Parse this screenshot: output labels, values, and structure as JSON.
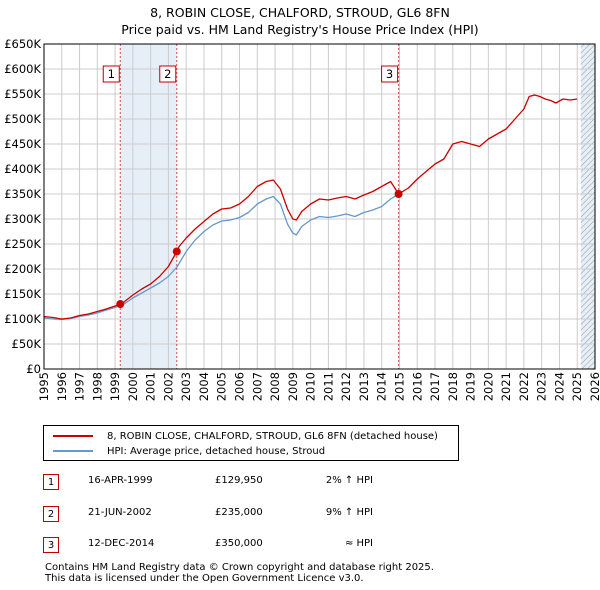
{
  "title_line1": "8, ROBIN CLOSE, CHALFORD, STROUD, GL6 8FN",
  "title_line2": "Price paid vs. HM Land Registry's House Price Index (HPI)",
  "colors": {
    "property": "#cc0000",
    "hpi": "#6699cc",
    "shade": "#e6eef8",
    "grid": "#cccccc",
    "marker_border": "#c00000"
  },
  "legend": {
    "property_label": "8, ROBIN CLOSE, CHALFORD, STROUD, GL6 8FN (detached house)",
    "hpi_label": "HPI: Average price, detached house, Stroud"
  },
  "transactions": [
    {
      "num": "1",
      "date": "16-APR-1999",
      "price": "£129,950",
      "hpi": "2% ↑ HPI"
    },
    {
      "num": "2",
      "date": "21-JUN-2002",
      "price": "£235,000",
      "hpi": "9% ↑ HPI"
    },
    {
      "num": "3",
      "date": "12-DEC-2014",
      "price": "£350,000",
      "hpi": "≈ HPI"
    }
  ],
  "footer": {
    "line1": "Contains HM Land Registry data © Crown copyright and database right 2025.",
    "line2": "This data is licensed under the Open Government Licence v3.0."
  },
  "chart_data": {
    "type": "line",
    "title": "8, ROBIN CLOSE, CHALFORD, STROUD, GL6 8FN — Price paid vs. HM Land Registry's House Price Index (HPI)",
    "xlim": [
      1995,
      2026
    ],
    "ylim": [
      0,
      650000
    ],
    "x_ticks": [
      1995,
      1996,
      1997,
      1998,
      1999,
      2000,
      2001,
      2002,
      2003,
      2004,
      2005,
      2006,
      2007,
      2008,
      2009,
      2010,
      2011,
      2012,
      2013,
      2014,
      2015,
      2016,
      2017,
      2018,
      2019,
      2020,
      2021,
      2022,
      2023,
      2024,
      2025,
      2026
    ],
    "y_ticks": [
      0,
      50000,
      100000,
      150000,
      200000,
      250000,
      300000,
      350000,
      400000,
      450000,
      500000,
      550000,
      600000,
      650000
    ],
    "y_tick_labels": [
      "£0",
      "£50K",
      "£100K",
      "£150K",
      "£200K",
      "£250K",
      "£300K",
      "£350K",
      "£400K",
      "£450K",
      "£500K",
      "£550K",
      "£600K",
      "£650K"
    ],
    "grid": true,
    "shaded_periods": [
      [
        1999.29,
        2002.47
      ],
      [
        2025.2,
        2026
      ]
    ],
    "hatched_period": [
      2025.2,
      2026
    ],
    "sale_markers": [
      {
        "label": "1",
        "x": 1999.29,
        "y": 129950
      },
      {
        "label": "2",
        "x": 2002.47,
        "y": 235000
      },
      {
        "label": "3",
        "x": 2014.95,
        "y": 350000
      }
    ],
    "series": [
      {
        "name": "8, ROBIN CLOSE, CHALFORD, STROUD, GL6 8FN (detached house)",
        "x": [
          1995.0,
          1995.5,
          1996.0,
          1996.5,
          1997.0,
          1997.5,
          1998.0,
          1998.5,
          1999.0,
          1999.29,
          1999.5,
          2000.0,
          2000.5,
          2001.0,
          2001.5,
          2002.0,
          2002.47,
          2002.6,
          2003.0,
          2003.5,
          2004.0,
          2004.5,
          2005.0,
          2005.5,
          2006.0,
          2006.5,
          2007.0,
          2007.5,
          2007.9,
          2008.3,
          2008.7,
          2009.0,
          2009.2,
          2009.5,
          2010.0,
          2010.5,
          2011.0,
          2011.5,
          2012.0,
          2012.5,
          2013.0,
          2013.5,
          2014.0,
          2014.5,
          2014.95,
          2015.5,
          2016.0,
          2016.5,
          2017.0,
          2017.5,
          2018.0,
          2018.5,
          2019.0,
          2019.5,
          2020.0,
          2020.5,
          2021.0,
          2021.5,
          2022.0,
          2022.3,
          2022.6,
          2022.9,
          2023.2,
          2023.5,
          2023.8,
          2024.2,
          2024.6,
          2025.0
        ],
        "values": [
          105000,
          103000,
          100000,
          102000,
          107000,
          110000,
          115000,
          120000,
          126000,
          129950,
          134000,
          148000,
          160000,
          170000,
          185000,
          205000,
          235000,
          245000,
          262000,
          280000,
          295000,
          310000,
          320000,
          322000,
          330000,
          345000,
          365000,
          375000,
          378000,
          360000,
          320000,
          300000,
          298000,
          315000,
          330000,
          340000,
          338000,
          342000,
          345000,
          340000,
          348000,
          355000,
          365000,
          375000,
          350000,
          362000,
          380000,
          395000,
          410000,
          420000,
          450000,
          455000,
          450000,
          445000,
          460000,
          470000,
          480000,
          500000,
          520000,
          545000,
          548000,
          545000,
          540000,
          537000,
          532000,
          540000,
          538000,
          540000
        ]
      },
      {
        "name": "HPI: Average price, detached house, Stroud",
        "x": [
          1995.0,
          1995.5,
          1996.0,
          1996.5,
          1997.0,
          1997.5,
          1998.0,
          1998.5,
          1999.0,
          1999.5,
          2000.0,
          2000.5,
          2001.0,
          2001.5,
          2002.0,
          2002.5,
          2003.0,
          2003.5,
          2004.0,
          2004.5,
          2005.0,
          2005.5,
          2006.0,
          2006.5,
          2007.0,
          2007.5,
          2007.9,
          2008.3,
          2008.7,
          2009.0,
          2009.2,
          2009.5,
          2010.0,
          2010.5,
          2011.0,
          2011.5,
          2012.0,
          2012.5,
          2013.0,
          2013.5,
          2014.0,
          2014.5,
          2014.95
        ],
        "values": [
          102000,
          100000,
          99000,
          101000,
          105000,
          108000,
          112000,
          118000,
          123000,
          130000,
          142000,
          152000,
          162000,
          172000,
          185000,
          205000,
          235000,
          258000,
          275000,
          288000,
          296000,
          298000,
          303000,
          313000,
          330000,
          340000,
          345000,
          330000,
          290000,
          272000,
          268000,
          285000,
          298000,
          305000,
          303000,
          306000,
          310000,
          305000,
          313000,
          318000,
          325000,
          340000,
          350000
        ]
      }
    ]
  }
}
